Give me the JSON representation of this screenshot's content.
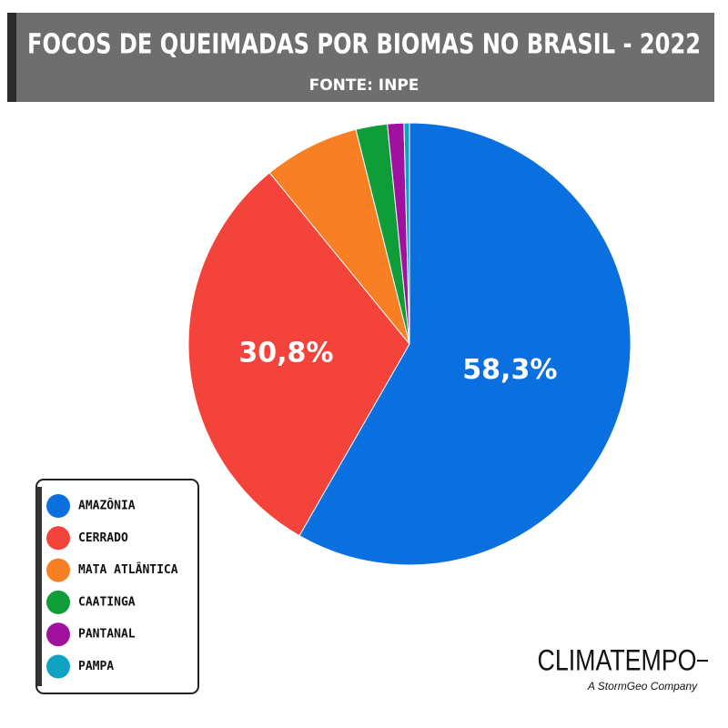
{
  "chart_data": {
    "type": "pie",
    "title": "FOCOS DE QUEIMADAS POR BIOMAS NO BRASIL - 2022",
    "subtitle": "FONTE: INPE",
    "categories": [
      "AMAZÔNIA",
      "CERRADO",
      "MATA ATLÂNTICA",
      "CAATINGA",
      "PANTANAL",
      "PAMPA"
    ],
    "values": [
      58.3,
      30.8,
      7.0,
      2.3,
      1.2,
      0.4
    ],
    "value_labels": [
      "58,3%",
      "30,8%",
      null,
      null,
      null,
      null
    ],
    "colors": [
      "#0a6fdf",
      "#f4433a",
      "#f97f24",
      "#0f9d3a",
      "#a0119f",
      "#0fa2c3"
    ],
    "legend": "bottom-left"
  },
  "brand": {
    "name": "CLIMATEMPO",
    "tagline": "A StormGeo Company"
  }
}
